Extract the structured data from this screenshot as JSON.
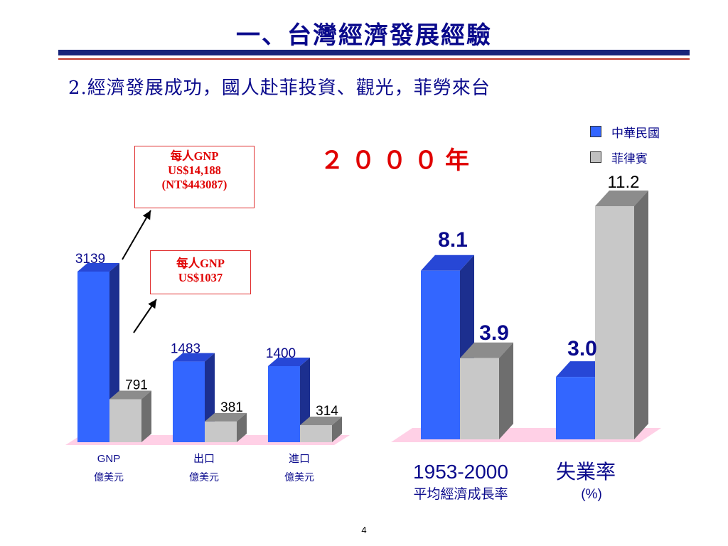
{
  "slide": {
    "title": "一、台灣經濟發展經驗",
    "subtitle": "2.經濟發展成功，國人赴菲投資、觀光，菲勞來台",
    "year_label": "２０００年",
    "page_number": "4"
  },
  "legend": {
    "items": [
      {
        "label": "中華民國",
        "color": "#3366ff"
      },
      {
        "label": "菲律賓",
        "color": "#c0c0c0"
      }
    ]
  },
  "callouts": {
    "taiwan": [
      "每人GNP",
      "US$14,188",
      "(NT$443087)"
    ],
    "philippines": [
      "每人GNP",
      "US$1037"
    ]
  },
  "colors": {
    "taiwan_front": "#3366ff",
    "taiwan_top": "#2747d6",
    "taiwan_side": "#1c2f8f",
    "ph_front": "#c8c8c8",
    "ph_top": "#8c8c8c",
    "ph_side": "#6e6e6e",
    "floor": "#ffd0e6",
    "text_navy": "#0a0a8c",
    "accent_red": "#e00000"
  },
  "chart_data": [
    {
      "type": "bar",
      "categories": [
        "GNP",
        "出口",
        "進口"
      ],
      "category_units": [
        "億美元",
        "億美元",
        "億美元"
      ],
      "series": [
        {
          "name": "中華民國",
          "values": [
            3139,
            1483,
            1400
          ]
        },
        {
          "name": "菲律賓",
          "values": [
            791,
            381,
            314
          ]
        }
      ],
      "value_labels": [
        [
          "3139",
          "1483",
          "1400"
        ],
        [
          "791",
          "381",
          "314"
        ]
      ]
    },
    {
      "type": "bar",
      "categories": [
        "1953-2000",
        "失業率"
      ],
      "category_sublabels": [
        "平均經濟成長率",
        "(%)"
      ],
      "series": [
        {
          "name": "中華民國",
          "values": [
            8.1,
            3.0
          ]
        },
        {
          "name": "菲律賓",
          "values": [
            3.9,
            11.2
          ]
        }
      ],
      "value_labels": [
        [
          "8.1",
          "3.0"
        ],
        [
          "3.9",
          "11.2"
        ]
      ]
    }
  ]
}
